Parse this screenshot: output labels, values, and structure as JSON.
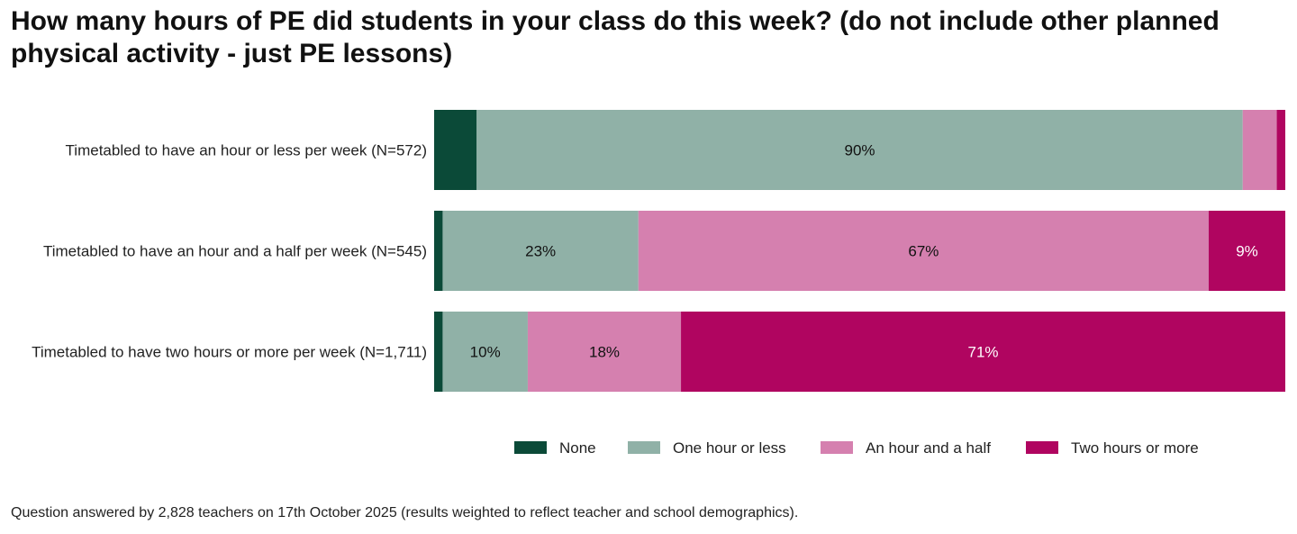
{
  "chart_data": {
    "type": "bar",
    "orientation": "horizontal",
    "stacked": true,
    "title": "How many hours of PE did students in your class do this week? (do not include other planned physical activity - just PE lessons)",
    "categories": [
      "Timetabled to have an hour or less per week (N=572)",
      "Timetabled to have an hour and a half per week (N=545)",
      "Timetabled to have two hours or more per week (N=1,711)"
    ],
    "series": [
      {
        "name": "None",
        "color": "#0b4a38",
        "text_color": "#ffffff",
        "values": [
          5,
          1,
          1
        ],
        "labels": [
          "",
          "",
          ""
        ]
      },
      {
        "name": "One hour or less",
        "color": "#90b1a7",
        "text_color": "#111111",
        "values": [
          90,
          23,
          10
        ],
        "labels": [
          "90%",
          "23%",
          "10%"
        ]
      },
      {
        "name": "An hour and a half",
        "color": "#d580af",
        "text_color": "#111111",
        "values": [
          4,
          67,
          18
        ],
        "labels": [
          "",
          "67%",
          "18%"
        ]
      },
      {
        "name": "Two hours or more",
        "color": "#b00560",
        "text_color": "#ffffff",
        "values": [
          1,
          9,
          71
        ],
        "labels": [
          "",
          "9%",
          "71%"
        ]
      }
    ],
    "xlim": [
      0,
      100
    ],
    "grid": false,
    "legend_position": "bottom"
  },
  "footnote": "Question answered by 2,828 teachers on 17th October 2025 (results weighted to reflect teacher and school demographics)."
}
